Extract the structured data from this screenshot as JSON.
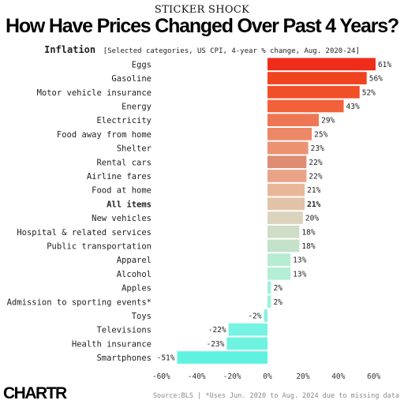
{
  "header": {
    "kicker": "STICKER SHOCK",
    "title": "How Have Prices Changed Over Past 4 Years?",
    "subtitle_main": "Inflation",
    "subtitle_note": "[Selected categories, US CPI, 4-year % change, Aug. 2020-24]"
  },
  "chart_data": {
    "type": "bar",
    "orientation": "horizontal",
    "categories": [
      "Eggs",
      "Gasoline",
      "Motor vehicle insurance",
      "Energy",
      "Electricity",
      "Food away from home",
      "Shelter",
      "Rental cars",
      "Airline fares",
      "Food at home",
      "All items",
      "New vehicles",
      "Hospital & related services",
      "Public transportation",
      "Apparel",
      "Alcohol",
      "Apples",
      "Admission to sporting events*",
      "Toys",
      "Televisions",
      "Health insurance",
      "Smartphones"
    ],
    "values": [
      61,
      56,
      52,
      43,
      29,
      25,
      23,
      22,
      22,
      21,
      21,
      20,
      18,
      18,
      13,
      13,
      2,
      2,
      -2,
      -22,
      -23,
      -51
    ],
    "value_labels": [
      "61%",
      "56%",
      "52%",
      "43%",
      "29%",
      "25%",
      "23%",
      "22%",
      "22%",
      "21%",
      "21%",
      "20%",
      "18%",
      "18%",
      "13%",
      "13%",
      "2%",
      "2%",
      "-2%",
      "-22%",
      "-23%",
      "-51%"
    ],
    "colors": [
      "#ef2b1a",
      "#f0431f",
      "#f14f28",
      "#f2613a",
      "#ef7654",
      "#ec8866",
      "#eb9272",
      "#de8d74",
      "#e9a389",
      "#e8b79a",
      "#e3c3a8",
      "#dcd3bf",
      "#cfdcc6",
      "#c4e1ca",
      "#b6ecd2",
      "#b3eed5",
      "#9ff1dd",
      "#9cf2de",
      "#85f2e2",
      "#76f3e2",
      "#6df3e0",
      "#5ff2e0"
    ],
    "highlight_category": "All items",
    "xlim": [
      -60,
      60
    ],
    "xticks": [
      -60,
      -40,
      -20,
      0,
      20,
      40,
      60
    ],
    "xtick_labels": [
      "-60%",
      "-40%",
      "-20%",
      "0%",
      "20%",
      "40%",
      "60%"
    ],
    "grid": false
  },
  "footer": {
    "logo": "CHARTR",
    "source": "Source:BLS | *Uses Jun. 2020 to Aug. 2024 due to missing data"
  }
}
